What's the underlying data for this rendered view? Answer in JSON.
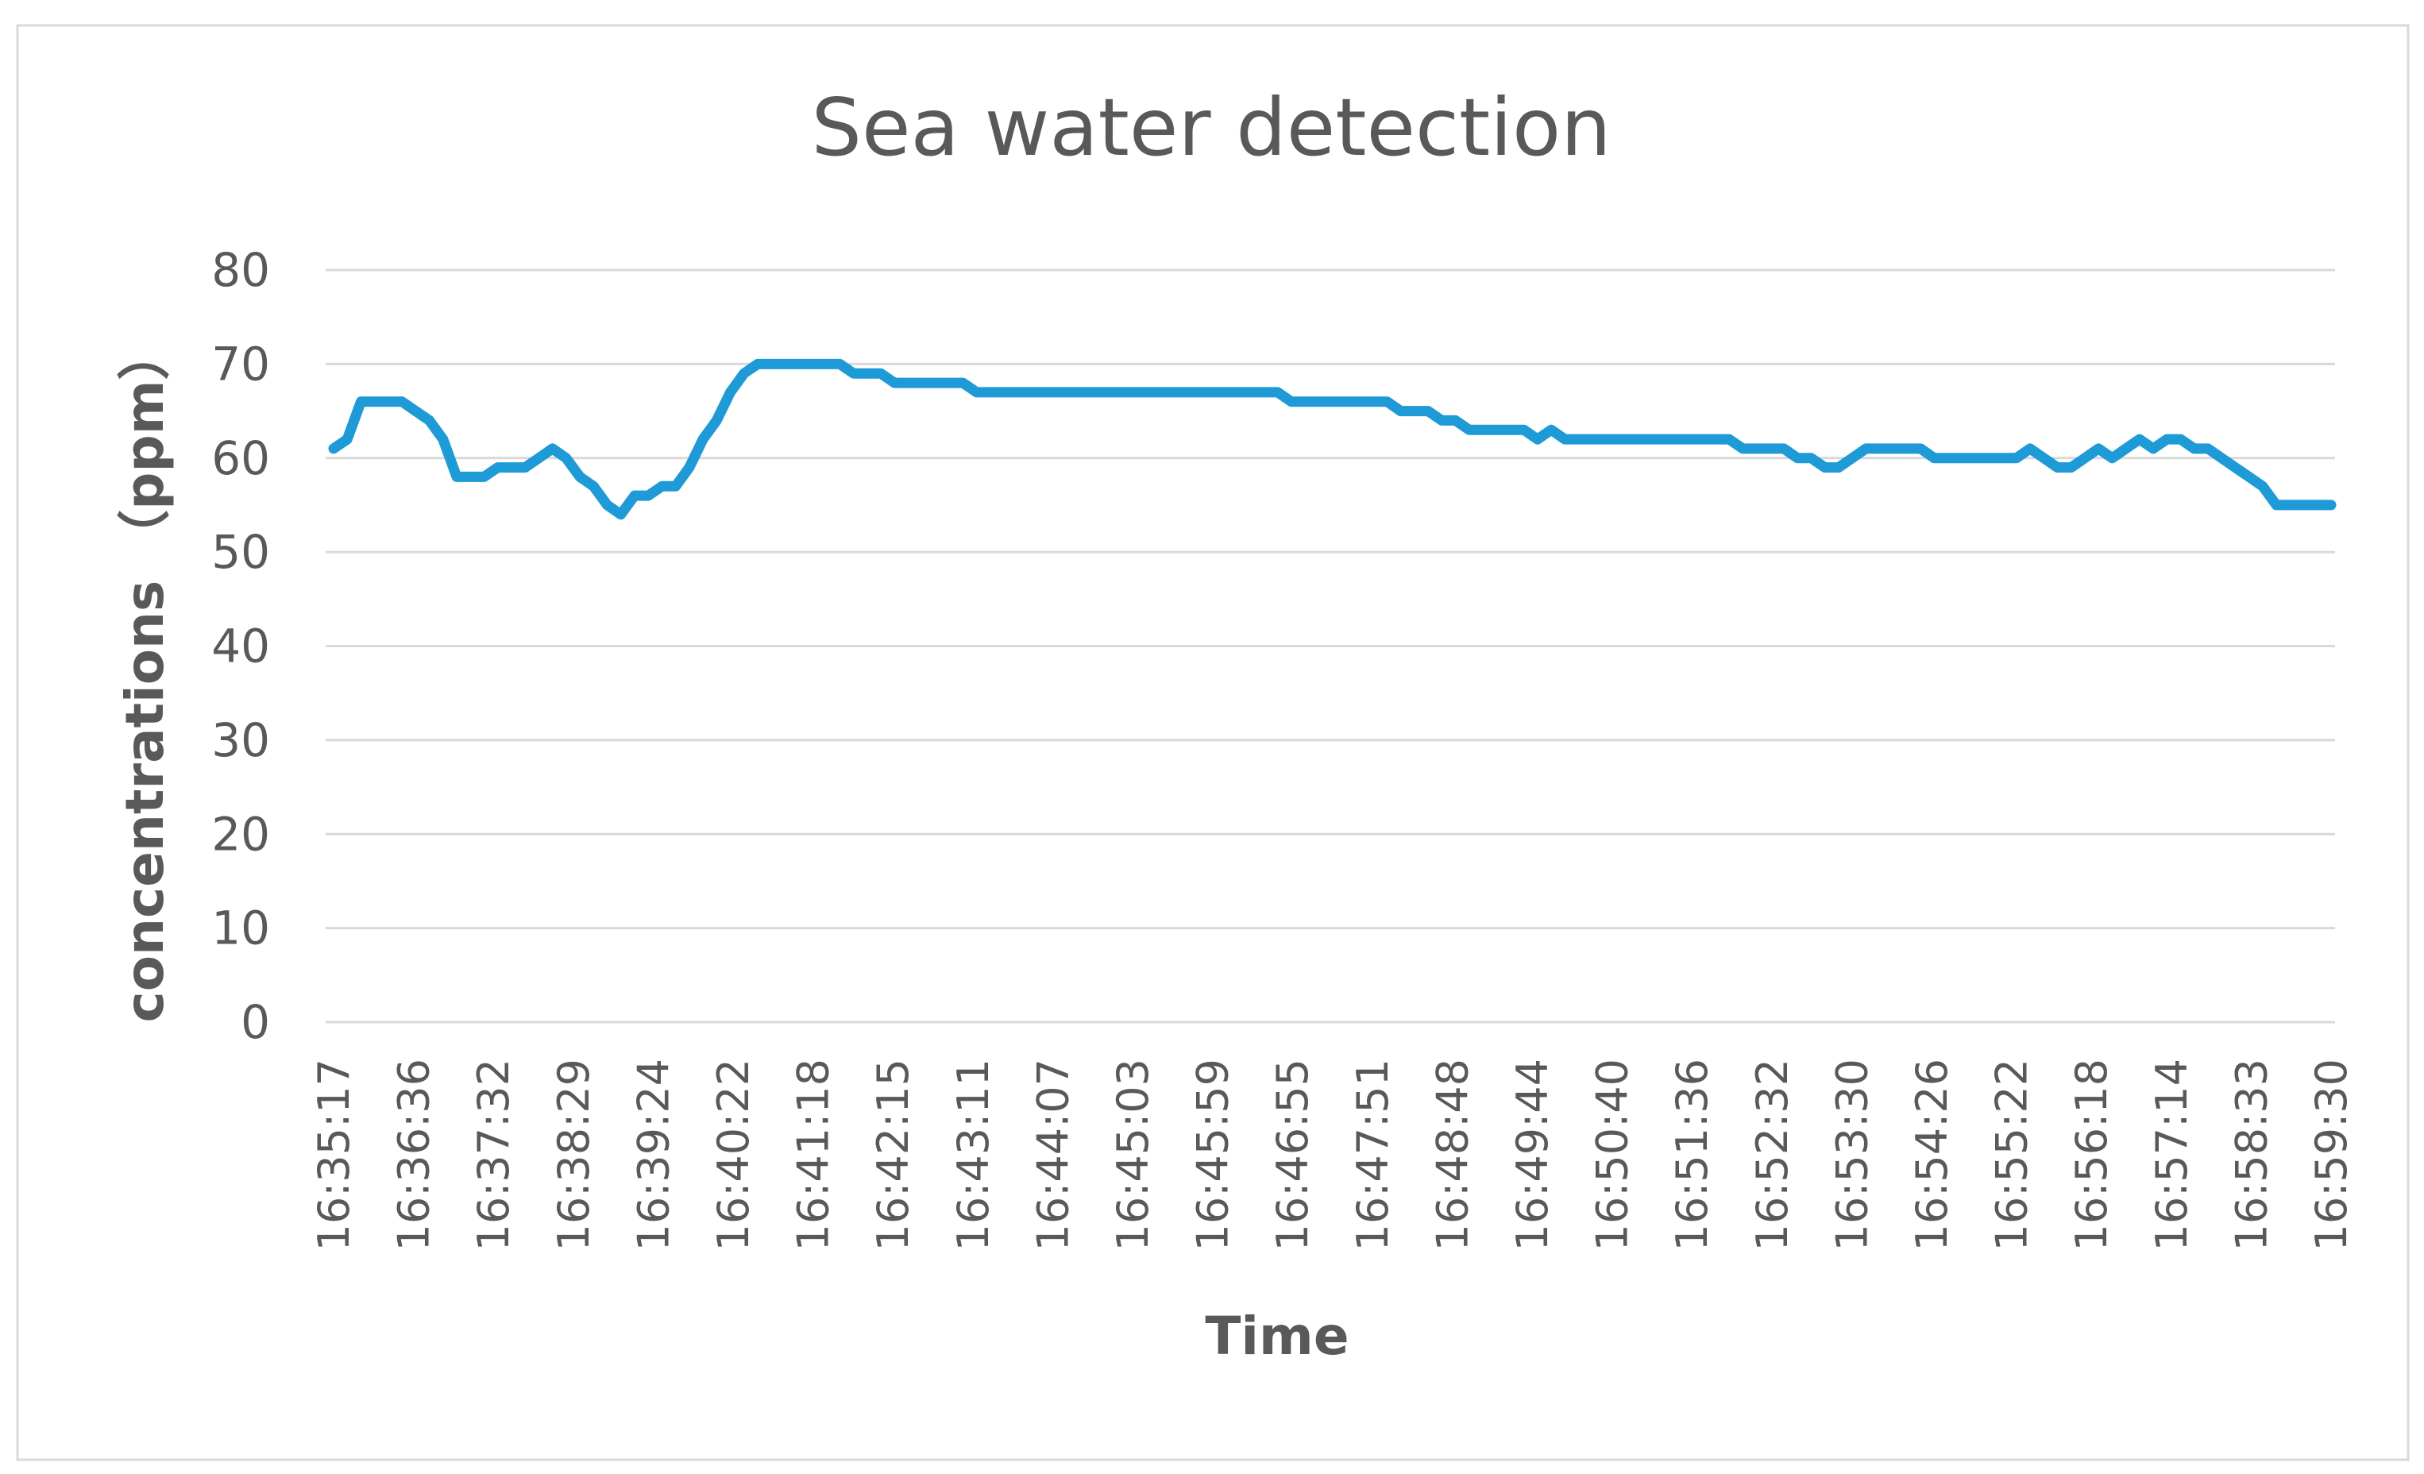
{
  "chart_data": {
    "type": "line",
    "title": "Sea water detection",
    "xlabel": "Time",
    "ylabel": "concentrations （ppm）",
    "ylim": [
      0,
      80
    ],
    "yticks": [
      0,
      10,
      20,
      30,
      40,
      50,
      60,
      70,
      80
    ],
    "grid": true,
    "legend": "none",
    "xtick_labels": [
      "16:35:17",
      "16:36:36",
      "16:37:32",
      "16:38:29",
      "16:39:24",
      "16:40:22",
      "16:41:18",
      "16:42:15",
      "16:43:11",
      "16:44:07",
      "16:45:03",
      "16:45:59",
      "16:46:55",
      "16:47:51",
      "16:48:48",
      "16:49:44",
      "16:50:40",
      "16:51:36",
      "16:52:32",
      "16:53:30",
      "16:54:26",
      "16:55:22",
      "16:56:18",
      "16:57:14",
      "16:58:33",
      "16:59:30"
    ],
    "series": [
      {
        "name": "concentration",
        "color": "#1E9AD6",
        "values": [
          61,
          62,
          66,
          66,
          66,
          66,
          65,
          64,
          62,
          58,
          58,
          58,
          59,
          59,
          59,
          60,
          61,
          60,
          58,
          57,
          55,
          54,
          56,
          56,
          57,
          57,
          59,
          62,
          64,
          67,
          69,
          70,
          70,
          70,
          70,
          70,
          70,
          70,
          69,
          69,
          69,
          68,
          68,
          68,
          68,
          68,
          68,
          67,
          67,
          67,
          67,
          67,
          67,
          67,
          67,
          67,
          67,
          67,
          67,
          67,
          67,
          67,
          67,
          67,
          67,
          67,
          67,
          67,
          67,
          67,
          66,
          66,
          66,
          66,
          66,
          66,
          66,
          66,
          65,
          65,
          65,
          64,
          64,
          63,
          63,
          63,
          63,
          63,
          62,
          63,
          62,
          62,
          62,
          62,
          62,
          62,
          62,
          62,
          62,
          62,
          62,
          62,
          62,
          61,
          61,
          61,
          61,
          60,
          60,
          59,
          59,
          60,
          61,
          61,
          61,
          61,
          61,
          60,
          60,
          60,
          60,
          60,
          60,
          60,
          61,
          60,
          59,
          59,
          60,
          61,
          60,
          61,
          62,
          61,
          62,
          62,
          61,
          61,
          60,
          59,
          58,
          57,
          55,
          55,
          55,
          55,
          55
        ]
      }
    ]
  }
}
